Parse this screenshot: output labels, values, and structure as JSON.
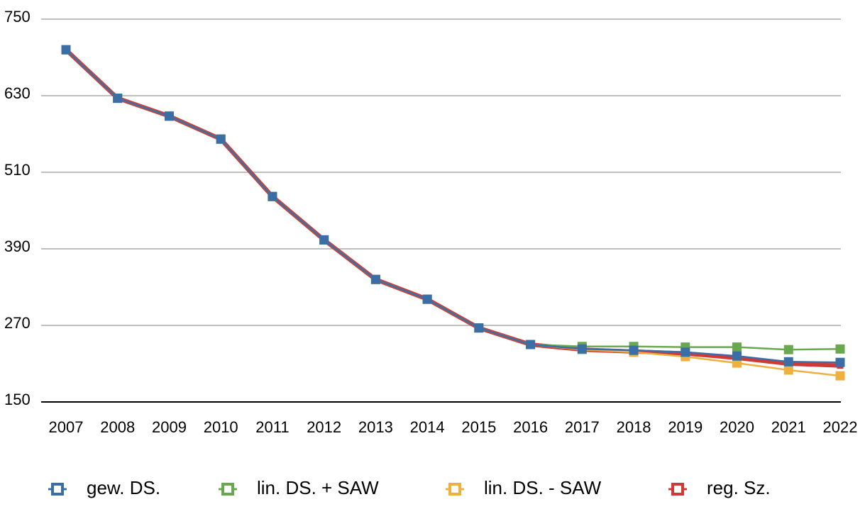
{
  "chart_data": {
    "type": "line",
    "categories": [
      "2007",
      "2008",
      "2009",
      "2010",
      "2011",
      "2012",
      "2013",
      "2014",
      "2015",
      "2016",
      "2017",
      "2018",
      "2019",
      "2020",
      "2021",
      "2022"
    ],
    "series": [
      {
        "name": "reg. Sz.",
        "color": "#d03a36",
        "values": [
          702,
          626,
          598,
          562,
          472,
          404,
          342,
          311,
          266,
          240,
          232,
          229,
          226,
          219,
          210,
          207
        ]
      },
      {
        "name": "lin. DS. - SAW",
        "color": "#f0b040",
        "values": [
          702,
          626,
          598,
          562,
          472,
          404,
          342,
          311,
          266,
          240,
          232,
          228,
          221,
          211,
          200,
          191
        ]
      },
      {
        "name": "lin. DS. + SAW",
        "color": "#6aa84f",
        "values": [
          702,
          626,
          598,
          562,
          472,
          404,
          342,
          311,
          266,
          240,
          237,
          237,
          236,
          236,
          232,
          233
        ]
      },
      {
        "name": "gew. DS.",
        "color": "#3b6ea5",
        "values": [
          702,
          626,
          598,
          562,
          472,
          404,
          342,
          311,
          266,
          240,
          233,
          231,
          228,
          222,
          213,
          212
        ]
      }
    ],
    "legend_order": [
      "gew. DS.",
      "lin. DS. + SAW",
      "lin. DS. - SAW",
      "reg. Sz."
    ],
    "ylim": [
      150,
      750
    ],
    "yticks": [
      150,
      270,
      390,
      510,
      630,
      750
    ],
    "grid": true
  }
}
